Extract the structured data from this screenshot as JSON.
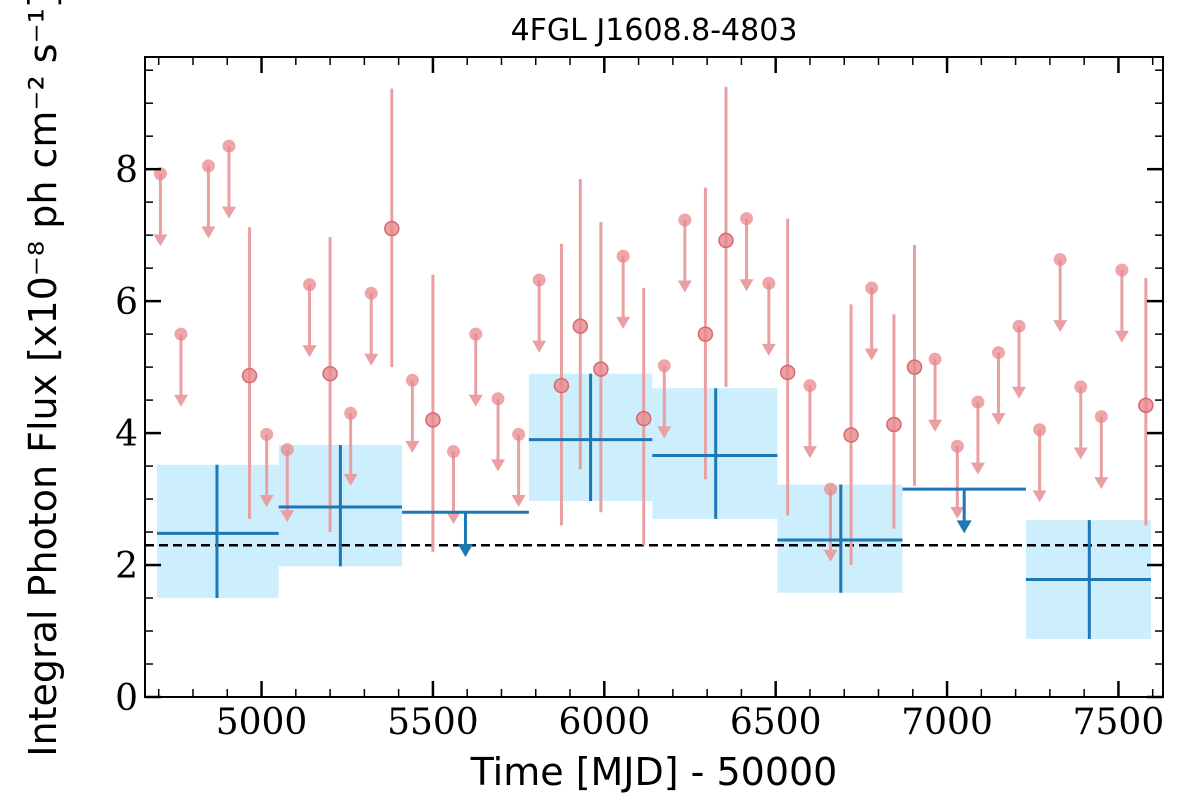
{
  "chart_data": {
    "type": "scatter",
    "title": "4FGL J1608.8-4803",
    "xlabel": "Time [MJD] - 50000",
    "ylabel": "Integral Photon Flux [x10⁻⁸ ph cm⁻² s⁻¹]",
    "xlim": [
      4660,
      7630
    ],
    "ylim": [
      0,
      9.7
    ],
    "x_ticks": [
      5000,
      5500,
      6000,
      6500,
      7000,
      7500
    ],
    "y_ticks": [
      0,
      2,
      4,
      6,
      8
    ],
    "reference_flux": 2.3,
    "colors": {
      "fine_points": "#e8888c",
      "fine_points_stroke": "#d46a6e",
      "fine_bars": "#e8a0a3",
      "coarse_line": "#1f77b4",
      "coarse_box": "#cdeefc",
      "reference_line": "#000000"
    },
    "fine_detections": [
      {
        "x": 4965,
        "y": 4.87,
        "lo": 2.7,
        "hi": 7.12
      },
      {
        "x": 5200,
        "y": 4.9,
        "lo": 2.5,
        "hi": 6.97
      },
      {
        "x": 5380,
        "y": 7.1,
        "lo": 5.0,
        "hi": 9.22
      },
      {
        "x": 5500,
        "y": 4.2,
        "lo": 2.2,
        "hi": 6.4
      },
      {
        "x": 5875,
        "y": 4.72,
        "lo": 2.6,
        "hi": 6.87
      },
      {
        "x": 5930,
        "y": 5.62,
        "lo": 3.45,
        "hi": 7.85
      },
      {
        "x": 5990,
        "y": 4.97,
        "lo": 2.8,
        "hi": 7.2
      },
      {
        "x": 6115,
        "y": 4.22,
        "lo": 2.3,
        "hi": 6.2
      },
      {
        "x": 6295,
        "y": 5.5,
        "lo": 3.3,
        "hi": 7.72
      },
      {
        "x": 6355,
        "y": 6.92,
        "lo": 4.7,
        "hi": 9.25
      },
      {
        "x": 6535,
        "y": 4.92,
        "lo": 2.75,
        "hi": 7.25
      },
      {
        "x": 6720,
        "y": 3.97,
        "lo": 2.0,
        "hi": 5.95
      },
      {
        "x": 6845,
        "y": 4.13,
        "lo": 2.55,
        "hi": 5.8
      },
      {
        "x": 6905,
        "y": 5.0,
        "lo": 3.2,
        "hi": 6.85
      },
      {
        "x": 7580,
        "y": 4.42,
        "lo": 2.6,
        "hi": 6.35
      }
    ],
    "fine_upper_limits": [
      {
        "x": 4705,
        "y": 7.93
      },
      {
        "x": 4765,
        "y": 5.5
      },
      {
        "x": 4845,
        "y": 8.05
      },
      {
        "x": 4905,
        "y": 8.35
      },
      {
        "x": 5015,
        "y": 3.98
      },
      {
        "x": 5075,
        "y": 3.75
      },
      {
        "x": 5140,
        "y": 6.25
      },
      {
        "x": 5260,
        "y": 4.3
      },
      {
        "x": 5320,
        "y": 6.12
      },
      {
        "x": 5440,
        "y": 4.8
      },
      {
        "x": 5560,
        "y": 3.72
      },
      {
        "x": 5625,
        "y": 5.5
      },
      {
        "x": 5690,
        "y": 4.52
      },
      {
        "x": 5750,
        "y": 3.98
      },
      {
        "x": 5810,
        "y": 6.32
      },
      {
        "x": 6055,
        "y": 6.68
      },
      {
        "x": 6175,
        "y": 5.02
      },
      {
        "x": 6235,
        "y": 7.23
      },
      {
        "x": 6415,
        "y": 7.25
      },
      {
        "x": 6480,
        "y": 6.27
      },
      {
        "x": 6600,
        "y": 4.72
      },
      {
        "x": 6660,
        "y": 3.15
      },
      {
        "x": 6780,
        "y": 6.2
      },
      {
        "x": 6965,
        "y": 5.12
      },
      {
        "x": 7030,
        "y": 3.8
      },
      {
        "x": 7090,
        "y": 4.47
      },
      {
        "x": 7150,
        "y": 5.22
      },
      {
        "x": 7210,
        "y": 5.62
      },
      {
        "x": 7270,
        "y": 4.05
      },
      {
        "x": 7330,
        "y": 6.63
      },
      {
        "x": 7390,
        "y": 4.7
      },
      {
        "x": 7450,
        "y": 4.25
      },
      {
        "x": 7510,
        "y": 6.47
      }
    ],
    "coarse_detections": [
      {
        "x0": 4695,
        "x1": 5050,
        "xc": 4870,
        "y": 2.48,
        "lo": 1.5,
        "hi": 3.52
      },
      {
        "x0": 5050,
        "x1": 5410,
        "xc": 5230,
        "y": 2.88,
        "lo": 1.98,
        "hi": 3.82
      },
      {
        "x0": 5780,
        "x1": 6140,
        "xc": 5960,
        "y": 3.9,
        "lo": 2.97,
        "hi": 4.9
      },
      {
        "x0": 6140,
        "x1": 6505,
        "xc": 6325,
        "y": 3.66,
        "lo": 2.7,
        "hi": 4.68
      },
      {
        "x0": 6505,
        "x1": 6870,
        "xc": 6690,
        "y": 2.38,
        "lo": 1.58,
        "hi": 3.22
      },
      {
        "x0": 7230,
        "x1": 7595,
        "xc": 7415,
        "y": 1.78,
        "lo": 0.88,
        "hi": 2.68
      }
    ],
    "coarse_upper_limits": [
      {
        "x0": 5410,
        "x1": 5780,
        "xc": 5595,
        "y": 2.8,
        "arrow_to": 2.12
      },
      {
        "x0": 6870,
        "x1": 7230,
        "xc": 7050,
        "y": 3.15,
        "arrow_to": 2.48
      }
    ]
  }
}
